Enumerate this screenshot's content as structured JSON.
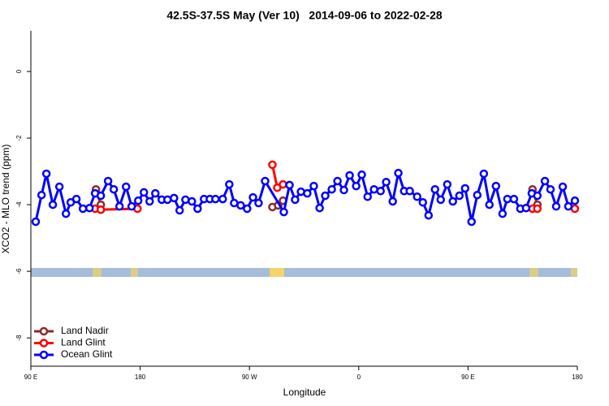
{
  "chart_data": {
    "type": "line",
    "title": "42.5S-37.5S May (Ver 10)   2014-09-06 to 2022-02-28",
    "x_label": "Longitude",
    "y_label": "XCO2 - MLO trend (ppm)",
    "xlim": [
      90,
      540
    ],
    "xticks": [
      {
        "value": 90,
        "label": "90 E"
      },
      180,
      {
        "value": 270,
        "label": "90 W"
      },
      {
        "value": 360,
        "label": "0"
      },
      {
        "value": 450,
        "label": "90 E"
      },
      {
        "value": 540,
        "label": "180"
      }
    ],
    "ylim": [
      -8.85,
      1.22
    ],
    "yticks": [
      0,
      -2,
      -4,
      -6,
      -8
    ],
    "legend": "bottom-left",
    "series": [
      {
        "name": "Land Nadir",
        "color": "#8b2a2a",
        "x": [
          143.6,
          147.6,
          null,
          288.9,
          293.6,
          297.6,
          null,
          503.1,
          507.1
        ],
        "values": [
          -3.54,
          -4.0,
          null,
          -4.07,
          -4.02,
          -3.88,
          null,
          -3.54,
          -4.0
        ]
      },
      {
        "name": "Land Glint",
        "color": "#ff0000",
        "x": [
          142.9,
          147.6,
          177.8,
          null,
          288.9,
          292.9,
          297.6,
          null,
          503.1,
          507.1,
          null,
          538.0
        ],
        "values": [
          -4.12,
          -4.15,
          -4.12,
          null,
          -2.8,
          -3.49,
          -3.39,
          null,
          -4.12,
          -4.12,
          null,
          -4.12
        ]
      },
      {
        "name": "Ocean Glint",
        "color": "#0000ff",
        "x": [
          94.0,
          98.8,
          102.8,
          108.1,
          113.5,
          118.9,
          122.8,
          127.5,
          132.9,
          138.3,
          142.9,
          147.6,
          153.6,
          158.3,
          163.0,
          168.4,
          173.0,
          178.4,
          183.1,
          187.8,
          192.5,
          197.8,
          202.5,
          207.9,
          212.5,
          217.3,
          222.6,
          227.3,
          232.6,
          237.4,
          242.0,
          248.0,
          253.4,
          257.4,
          262.8,
          268.1,
          272.9,
          277.5,
          282.9,
          298.3,
          303.0,
          307.6,
          312.4,
          317.6,
          323.0,
          327.8,
          332.4,
          337.8,
          342.5,
          347.8,
          352.5,
          357.9,
          362.5,
          367.3,
          372.6,
          378.0,
          382.6,
          388.0,
          392.6,
          397.4,
          402.0,
          408.1,
          412.8,
          417.5,
          422.8,
          427.5,
          432.9,
          437.5,
          442.9,
          447.6,
          452.9,
          457.6,
          463.0,
          467.6,
          473.0,
          478.4,
          482.4,
          487.8,
          493.1,
          497.8,
          502.5,
          507.1,
          513.3,
          517.9,
          522.6,
          528.0,
          532.6,
          538.0
        ],
        "values": [
          -4.51,
          -3.71,
          -3.07,
          -4.0,
          -3.46,
          -4.27,
          -3.93,
          -3.83,
          -4.12,
          -4.1,
          -3.66,
          -3.73,
          -3.29,
          -3.54,
          -4.05,
          -3.46,
          -4.05,
          -3.88,
          -3.63,
          -3.9,
          -3.66,
          -3.85,
          -3.85,
          -3.8,
          -4.17,
          -3.85,
          -3.9,
          -4.12,
          -3.83,
          -3.83,
          -3.83,
          -3.83,
          -3.39,
          -3.95,
          -4.02,
          -4.12,
          -3.78,
          -3.95,
          -3.29,
          -4.22,
          -3.41,
          -3.85,
          -3.61,
          -3.66,
          -3.44,
          -4.1,
          -3.73,
          -3.54,
          -3.29,
          -3.56,
          -3.12,
          -3.44,
          -3.1,
          -3.76,
          -3.54,
          -3.59,
          -3.32,
          -3.9,
          -3.05,
          -3.59,
          -3.59,
          -3.76,
          -3.93,
          -4.32,
          -3.54,
          -3.85,
          -3.39,
          -3.9,
          -3.73,
          -3.51,
          -4.51,
          -3.71,
          -3.07,
          -4.0,
          -3.44,
          -4.27,
          -3.83,
          -3.83,
          -4.12,
          -4.1,
          -3.66,
          -3.73,
          -3.29,
          -3.54,
          -4.05,
          -3.46,
          -4.05,
          -3.88
        ]
      }
    ]
  }
}
